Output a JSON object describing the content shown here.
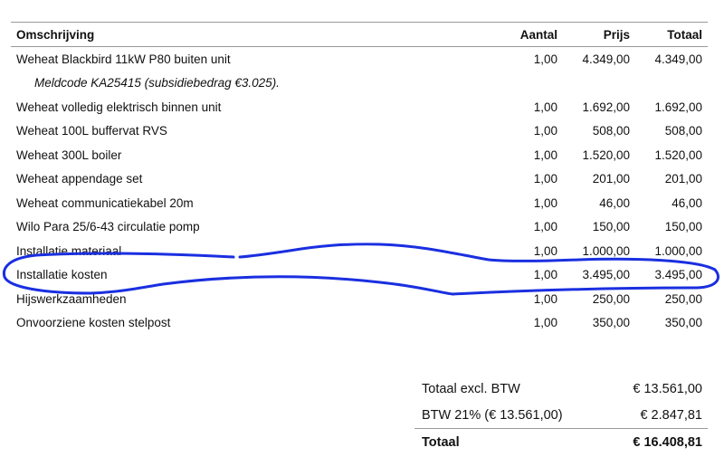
{
  "table": {
    "headers": {
      "description": "Omschrijving",
      "quantity": "Aantal",
      "price": "Prijs",
      "total": "Totaal"
    },
    "rows": [
      {
        "description": "Weheat Blackbird 11kW P80 buiten unit",
        "quantity": "1,00",
        "price": "4.349,00",
        "total": "4.349,00"
      },
      {
        "note": "Meldcode KA25415 (subsidiebedrag €3.025)."
      },
      {
        "description": "Weheat volledig elektrisch binnen unit",
        "quantity": "1,00",
        "price": "1.692,00",
        "total": "1.692,00"
      },
      {
        "description": "Weheat 100L buffervat RVS",
        "quantity": "1,00",
        "price": "508,00",
        "total": "508,00"
      },
      {
        "description": "Weheat 300L boiler",
        "quantity": "1,00",
        "price": "1.520,00",
        "total": "1.520,00"
      },
      {
        "description": "Weheat appendage set",
        "quantity": "1,00",
        "price": "201,00",
        "total": "201,00"
      },
      {
        "description": "Weheat communicatiekabel 20m",
        "quantity": "1,00",
        "price": "46,00",
        "total": "46,00"
      },
      {
        "description": "Wilo Para 25/6-43 circulatie pomp",
        "quantity": "1,00",
        "price": "150,00",
        "total": "150,00"
      },
      {
        "description": "Installatie materiaal",
        "quantity": "1,00",
        "price": "1.000,00",
        "total": "1.000,00"
      },
      {
        "description": "Installatie kosten",
        "quantity": "1,00",
        "price": "3.495,00",
        "total": "3.495,00"
      },
      {
        "description": "Hijswerkzaamheden",
        "quantity": "1,00",
        "price": "250,00",
        "total": "250,00"
      },
      {
        "description": "Onvoorziene kosten stelpost",
        "quantity": "1,00",
        "price": "350,00",
        "total": "350,00"
      }
    ]
  },
  "summary": {
    "subtotal_label": "Totaal excl. BTW",
    "subtotal_value": "€ 13.561,00",
    "vat_label": "BTW 21% (€ 13.561,00)",
    "vat_value": "€ 2.847,81",
    "total_label": "Totaal",
    "total_value": "€ 16.408,81"
  },
  "annotation": {
    "color": "#1a2fe0"
  }
}
